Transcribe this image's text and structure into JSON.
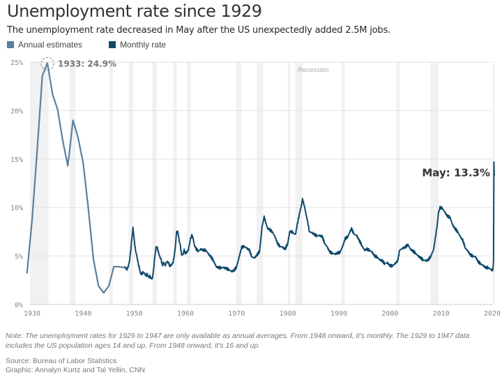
{
  "header": {
    "title": "Unemployment rate since 1929",
    "subtitle": "The unemployment rate decreased in May after the US unexpectedly added 2.5M jobs."
  },
  "legend": [
    {
      "label": "Annual estimates",
      "color": "#5b7f9c"
    },
    {
      "label": "Monthly rate",
      "color": "#0f4a6b"
    }
  ],
  "annotations": {
    "peak": "1933: 24.9%",
    "latest": "May: 13.3%",
    "recession": "Recession"
  },
  "footer": {
    "note": "Note: The unemployment rates for 1929 to 1947 are only available as annual averages. From 1948 onward, it's monthly. The 1929 to 1947 data includes the US population ages 14 and up. From 1948 onward, it's 16 and up.",
    "source": "Source: Bureau of Labor Statistics",
    "credit": "Graphic: Annalyn Kurtz and Tal Yellin, CNN"
  },
  "chart_data": {
    "type": "line",
    "title": "Unemployment rate since 1929",
    "xlabel": "",
    "ylabel": "",
    "xlim": [
      1929,
      2020.5
    ],
    "ylim": [
      0,
      25
    ],
    "x_ticks": [
      1930,
      1940,
      1950,
      1960,
      1970,
      1980,
      1990,
      2000,
      2010,
      2020
    ],
    "x_tick_labels": [
      "1930",
      "1940",
      "1950",
      "1960",
      "1970",
      "1980",
      "1990",
      "2000",
      "2010",
      "2020"
    ],
    "y_ticks": [
      0,
      5,
      10,
      15,
      20,
      25
    ],
    "y_tick_labels": [
      "0%",
      "5%",
      "10%",
      "15%",
      "20%",
      "25%"
    ],
    "grid": true,
    "legend_position": "top-left",
    "recessions": [
      [
        1929.6,
        1933.2
      ],
      [
        1937.4,
        1938.5
      ],
      [
        1945.1,
        1945.8
      ],
      [
        1948.9,
        1949.8
      ],
      [
        1953.5,
        1954.4
      ],
      [
        1957.6,
        1958.3
      ],
      [
        1960.3,
        1961.1
      ],
      [
        1969.9,
        1970.9
      ],
      [
        1973.9,
        1975.2
      ],
      [
        1980.0,
        1980.5
      ],
      [
        1981.5,
        1982.9
      ],
      [
        1990.5,
        1991.2
      ],
      [
        2001.2,
        2001.9
      ],
      [
        2007.9,
        2009.5
      ],
      [
        2020.1,
        2020.5
      ]
    ],
    "series": [
      {
        "name": "Annual estimates",
        "x": [
          1929,
          1930,
          1931,
          1932,
          1933,
          1934,
          1935,
          1936,
          1937,
          1938,
          1939,
          1940,
          1941,
          1942,
          1943,
          1944,
          1945,
          1946,
          1947,
          1948
        ],
        "values": [
          3.2,
          8.7,
          15.9,
          23.6,
          24.9,
          21.7,
          20.1,
          16.9,
          14.3,
          19.0,
          17.2,
          14.6,
          9.9,
          4.7,
          1.9,
          1.2,
          1.9,
          3.9,
          3.9,
          3.8
        ]
      },
      {
        "name": "Monthly rate",
        "x": [
          1948.0,
          1948.25,
          1948.5,
          1948.75,
          1949.0,
          1949.25,
          1949.5,
          1949.75,
          1950.0,
          1950.25,
          1950.5,
          1950.75,
          1951.0,
          1951.25,
          1951.5,
          1951.75,
          1952.0,
          1952.25,
          1952.5,
          1952.75,
          1953.0,
          1953.25,
          1953.5,
          1953.75,
          1954.0,
          1954.25,
          1954.5,
          1954.75,
          1955.0,
          1955.25,
          1955.5,
          1955.75,
          1956.0,
          1956.25,
          1956.5,
          1956.75,
          1957.0,
          1957.25,
          1957.5,
          1957.75,
          1958.0,
          1958.25,
          1958.5,
          1958.75,
          1959.0,
          1959.25,
          1959.5,
          1959.75,
          1960.0,
          1960.25,
          1960.5,
          1960.75,
          1961.0,
          1961.25,
          1961.5,
          1961.75,
          1962.0,
          1962.5,
          1963.0,
          1963.5,
          1964.0,
          1964.5,
          1965.0,
          1965.5,
          1966.0,
          1966.5,
          1967.0,
          1967.5,
          1968.0,
          1968.5,
          1969.0,
          1969.5,
          1970.0,
          1970.5,
          1971.0,
          1971.5,
          1972.0,
          1972.5,
          1973.0,
          1973.5,
          1974.0,
          1974.5,
          1975.0,
          1975.4,
          1975.75,
          1976.0,
          1976.5,
          1977.0,
          1977.5,
          1978.0,
          1978.5,
          1979.0,
          1979.5,
          1980.0,
          1980.4,
          1980.75,
          1981.0,
          1981.5,
          1981.9,
          1982.25,
          1982.5,
          1982.9,
          1983.25,
          1983.5,
          1983.9,
          1984.25,
          1984.75,
          1985.25,
          1985.75,
          1986.25,
          1986.75,
          1987.25,
          1987.75,
          1988.25,
          1988.75,
          1989.25,
          1989.75,
          1990.25,
          1990.75,
          1991.25,
          1991.75,
          1992.25,
          1992.5,
          1992.9,
          1993.5,
          1994.0,
          1994.5,
          1995.0,
          1995.5,
          1996.0,
          1996.5,
          1997.0,
          1997.5,
          1998.0,
          1998.5,
          1999.0,
          1999.5,
          2000.0,
          2000.5,
          2001.0,
          2001.5,
          2001.9,
          2002.5,
          2003.0,
          2003.5,
          2004.0,
          2004.5,
          2005.0,
          2005.5,
          2006.0,
          2006.5,
          2007.0,
          2007.5,
          2008.0,
          2008.5,
          2008.9,
          2009.25,
          2009.5,
          2009.8,
          2010.25,
          2010.75,
          2011.25,
          2011.75,
          2012.25,
          2012.75,
          2013.25,
          2013.75,
          2014.25,
          2014.75,
          2015.25,
          2015.75,
          2016.25,
          2016.75,
          2017.25,
          2017.75,
          2018.25,
          2018.75,
          2019.25,
          2019.75,
          2020.1,
          2020.25,
          2020.33,
          2020.4
        ],
        "values": [
          3.9,
          3.8,
          3.6,
          3.8,
          4.3,
          5.3,
          6.7,
          7.9,
          6.5,
          5.5,
          5.0,
          4.2,
          3.7,
          3.1,
          3.2,
          3.3,
          3.2,
          2.9,
          3.2,
          2.8,
          2.9,
          2.7,
          2.6,
          3.5,
          4.9,
          5.9,
          5.8,
          5.3,
          4.9,
          4.6,
          4.0,
          4.3,
          4.0,
          4.3,
          4.4,
          4.2,
          3.9,
          4.1,
          4.2,
          4.8,
          5.8,
          7.4,
          7.5,
          6.7,
          6.0,
          5.1,
          5.1,
          5.6,
          5.2,
          5.4,
          5.5,
          6.1,
          6.8,
          7.1,
          6.8,
          6.1,
          5.8,
          5.5,
          5.7,
          5.6,
          5.6,
          5.2,
          4.9,
          4.5,
          3.9,
          3.8,
          3.8,
          3.8,
          3.7,
          3.6,
          3.4,
          3.5,
          3.9,
          4.9,
          5.9,
          6.0,
          5.8,
          5.6,
          4.9,
          4.8,
          5.1,
          5.5,
          8.1,
          9.0,
          8.4,
          7.9,
          7.7,
          7.5,
          7.0,
          6.3,
          6.0,
          5.9,
          5.7,
          6.3,
          7.5,
          7.5,
          7.4,
          7.2,
          8.3,
          9.3,
          9.8,
          10.8,
          10.2,
          9.5,
          8.5,
          7.5,
          7.4,
          7.2,
          7.1,
          7.1,
          7.0,
          6.3,
          5.9,
          5.4,
          5.3,
          5.2,
          5.3,
          5.4,
          6.0,
          6.8,
          7.0,
          7.6,
          7.8,
          7.3,
          7.1,
          6.6,
          6.1,
          5.6,
          5.7,
          5.6,
          5.4,
          5.0,
          4.9,
          4.6,
          4.5,
          4.2,
          4.3,
          4.0,
          4.0,
          4.2,
          4.5,
          5.6,
          5.8,
          5.9,
          6.2,
          5.7,
          5.5,
          5.3,
          5.0,
          4.8,
          4.6,
          4.5,
          4.6,
          5.0,
          5.6,
          6.9,
          8.3,
          9.5,
          10.0,
          9.9,
          9.5,
          9.1,
          9.0,
          8.2,
          7.8,
          7.5,
          7.0,
          6.6,
          5.8,
          5.5,
          5.1,
          5.0,
          4.9,
          4.4,
          4.2,
          4.0,
          3.8,
          3.8,
          3.6,
          3.5,
          4.4,
          14.7,
          13.3
        ]
      }
    ],
    "annotations": [
      {
        "x": 1933,
        "y": 24.9,
        "text": "1933: 24.9%"
      },
      {
        "x": 2020.4,
        "y": 13.3,
        "text": "May: 13.3%"
      },
      {
        "text": "Recession"
      }
    ]
  }
}
